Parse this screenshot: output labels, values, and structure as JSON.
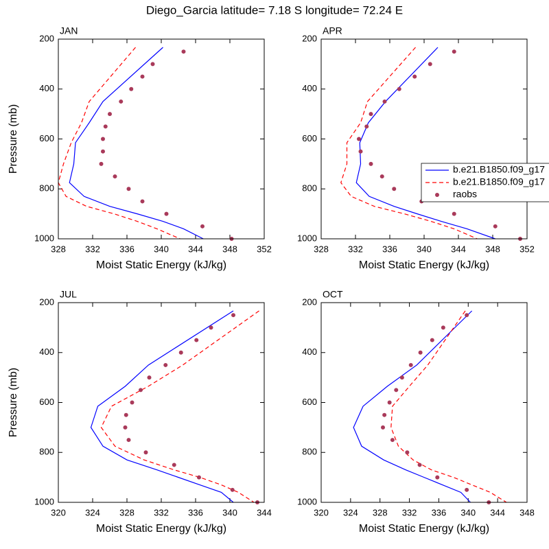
{
  "title": "Diego_Garcia  latitude= 7.18 S longitude= 72.24 E",
  "chart_data": [
    {
      "type": "line",
      "title": "JAN",
      "xlabel": "Moist Static Energy (kJ/kg)",
      "ylabel": "Pressure (mb)",
      "xlim": [
        328,
        352
      ],
      "xticks": [
        328,
        332,
        336,
        340,
        344,
        348,
        352
      ],
      "ylim": [
        1000,
        200
      ],
      "yticks": [
        200,
        400,
        600,
        800,
        1000
      ],
      "series": [
        {
          "name": "b.e21.B1850.f09_g17",
          "color": "#0000ff",
          "line": "solid",
          "x": [
            340.2,
            333.2,
            331.6,
            330.0,
            329.8,
            329.3,
            331.0,
            334.0,
            337.2,
            340.2,
            342.6,
            344.9
          ],
          "y": [
            233,
            450,
            535,
            615,
            700,
            775,
            830,
            870,
            900,
            930,
            960,
            1000
          ]
        },
        {
          "name": "b.e21.B1850.f09_g17",
          "color": "#ff0000",
          "line": "dashed",
          "x": [
            337.0,
            331.6,
            330.7,
            329.5,
            328.6,
            328.0,
            328.9,
            331.3,
            334.5,
            337.2,
            339.5,
            342.2
          ],
          "y": [
            233,
            450,
            535,
            615,
            700,
            775,
            830,
            870,
            900,
            930,
            960,
            1000
          ]
        },
        {
          "name": "raobs",
          "color": "#a93a5a",
          "line": "none",
          "x": [
            342.6,
            339.0,
            337.8,
            336.5,
            335.3,
            334.0,
            333.5,
            333.2,
            333.2,
            333.0,
            334.6,
            336.2,
            337.8,
            340.6,
            344.8,
            348.2
          ],
          "y": [
            250,
            300,
            350,
            400,
            450,
            500,
            550,
            600,
            650,
            700,
            750,
            800,
            850,
            900,
            950,
            1000
          ]
        }
      ]
    },
    {
      "type": "line",
      "title": "APR",
      "xlabel": "Moist Static Energy (kJ/kg)",
      "legend": true,
      "xlim": [
        328,
        352
      ],
      "xticks": [
        328,
        332,
        336,
        340,
        344,
        348,
        352
      ],
      "ylim": [
        1000,
        200
      ],
      "yticks": [
        200,
        400,
        600,
        800,
        1000
      ],
      "series": [
        {
          "name": "b.e21.B1850.f09_g17",
          "color": "#0000ff",
          "line": "solid",
          "x": [
            341.6,
            335.5,
            333.5,
            332.5,
            332.6,
            332.1,
            333.6,
            336.5,
            339.2,
            342.0,
            345.0,
            348.3
          ],
          "y": [
            233,
            450,
            535,
            615,
            700,
            775,
            830,
            870,
            900,
            930,
            960,
            1000
          ]
        },
        {
          "name": "b.e21.B1850.f09_g17",
          "color": "#ff0000",
          "line": "dashed",
          "x": [
            339.0,
            333.4,
            332.6,
            331.0,
            331.0,
            330.3,
            331.5,
            334.2,
            337.7,
            340.8,
            343.5,
            346.2
          ],
          "y": [
            233,
            450,
            535,
            615,
            700,
            775,
            830,
            870,
            900,
            930,
            960,
            1000
          ]
        },
        {
          "name": "raobs",
          "color": "#a93a5a",
          "line": "none",
          "x": [
            343.5,
            340.7,
            338.9,
            337.1,
            335.4,
            333.8,
            333.3,
            332.4,
            332.6,
            333.8,
            335.1,
            336.5,
            339.7,
            343.5,
            348.3,
            351.2
          ],
          "y": [
            250,
            300,
            350,
            400,
            450,
            500,
            550,
            600,
            650,
            700,
            750,
            800,
            850,
            900,
            950,
            1000
          ]
        }
      ]
    },
    {
      "type": "line",
      "title": "JUL",
      "xlabel": "Moist Static Energy (kJ/kg)",
      "ylabel": "Pressure (mb)",
      "xlim": [
        320,
        344
      ],
      "xticks": [
        320,
        324,
        328,
        332,
        336,
        340,
        344
      ],
      "ylim": [
        1000,
        200
      ],
      "yticks": [
        200,
        400,
        600,
        800,
        1000
      ],
      "series": [
        {
          "name": "b.e21.B1850.f09_g17",
          "color": "#0000ff",
          "line": "solid",
          "x": [
            340.4,
            330.5,
            327.8,
            324.6,
            323.8,
            325.2,
            328.0,
            331.5,
            334.0,
            336.5,
            339.0,
            340.4
          ],
          "y": [
            233,
            450,
            535,
            615,
            700,
            775,
            830,
            870,
            900,
            930,
            960,
            1000
          ]
        },
        {
          "name": "b.e21.B1850.f09_g17",
          "color": "#ff0000",
          "line": "dashed",
          "x": [
            343.4,
            334.5,
            330.5,
            326.2,
            325.0,
            326.6,
            330.0,
            333.5,
            336.5,
            339.0,
            341.0,
            342.8
          ],
          "y": [
            233,
            450,
            535,
            615,
            700,
            775,
            830,
            870,
            900,
            930,
            960,
            1000
          ]
        },
        {
          "name": "raobs",
          "color": "#a93a5a",
          "line": "none",
          "x": [
            340.4,
            337.8,
            336.1,
            334.3,
            332.5,
            330.6,
            329.6,
            328.6,
            327.9,
            327.8,
            328.2,
            330.2,
            333.5,
            336.4,
            340.3,
            343.2
          ],
          "y": [
            250,
            300,
            350,
            400,
            450,
            500,
            550,
            600,
            650,
            700,
            750,
            800,
            850,
            900,
            950,
            1000
          ]
        }
      ]
    },
    {
      "type": "line",
      "title": "OCT",
      "xlabel": "Moist Static Energy (kJ/kg)",
      "xlim": [
        320,
        348
      ],
      "xticks": [
        320,
        324,
        328,
        332,
        336,
        340,
        344,
        348
      ],
      "ylim": [
        1000,
        200
      ],
      "yticks": [
        200,
        400,
        600,
        800,
        1000
      ],
      "series": [
        {
          "name": "b.e21.B1850.f09_g17",
          "color": "#0000ff",
          "line": "solid",
          "x": [
            340.5,
            333.0,
            329.0,
            325.7,
            324.4,
            325.5,
            328.5,
            331.5,
            334.0,
            336.5,
            339.0,
            340.3
          ],
          "y": [
            233,
            450,
            535,
            615,
            700,
            775,
            830,
            870,
            900,
            930,
            960,
            1000
          ]
        },
        {
          "name": "b.e21.B1850.f09_g17",
          "color": "#ff0000",
          "line": "dashed",
          "x": [
            339.6,
            334.5,
            332.0,
            329.7,
            329.5,
            330.5,
            332.5,
            335.0,
            338.0,
            340.5,
            343.0,
            345.2
          ],
          "y": [
            233,
            450,
            535,
            615,
            700,
            775,
            830,
            870,
            900,
            930,
            960,
            1000
          ]
        },
        {
          "name": "raobs",
          "color": "#a93a5a",
          "line": "none",
          "x": [
            339.8,
            336.6,
            335.1,
            333.5,
            332.2,
            331.0,
            330.2,
            329.3,
            328.6,
            328.4,
            329.7,
            331.7,
            333.4,
            335.8,
            339.8,
            342.8
          ],
          "y": [
            250,
            300,
            350,
            400,
            450,
            500,
            550,
            600,
            650,
            700,
            750,
            800,
            850,
            900,
            950,
            1000
          ]
        }
      ]
    }
  ]
}
